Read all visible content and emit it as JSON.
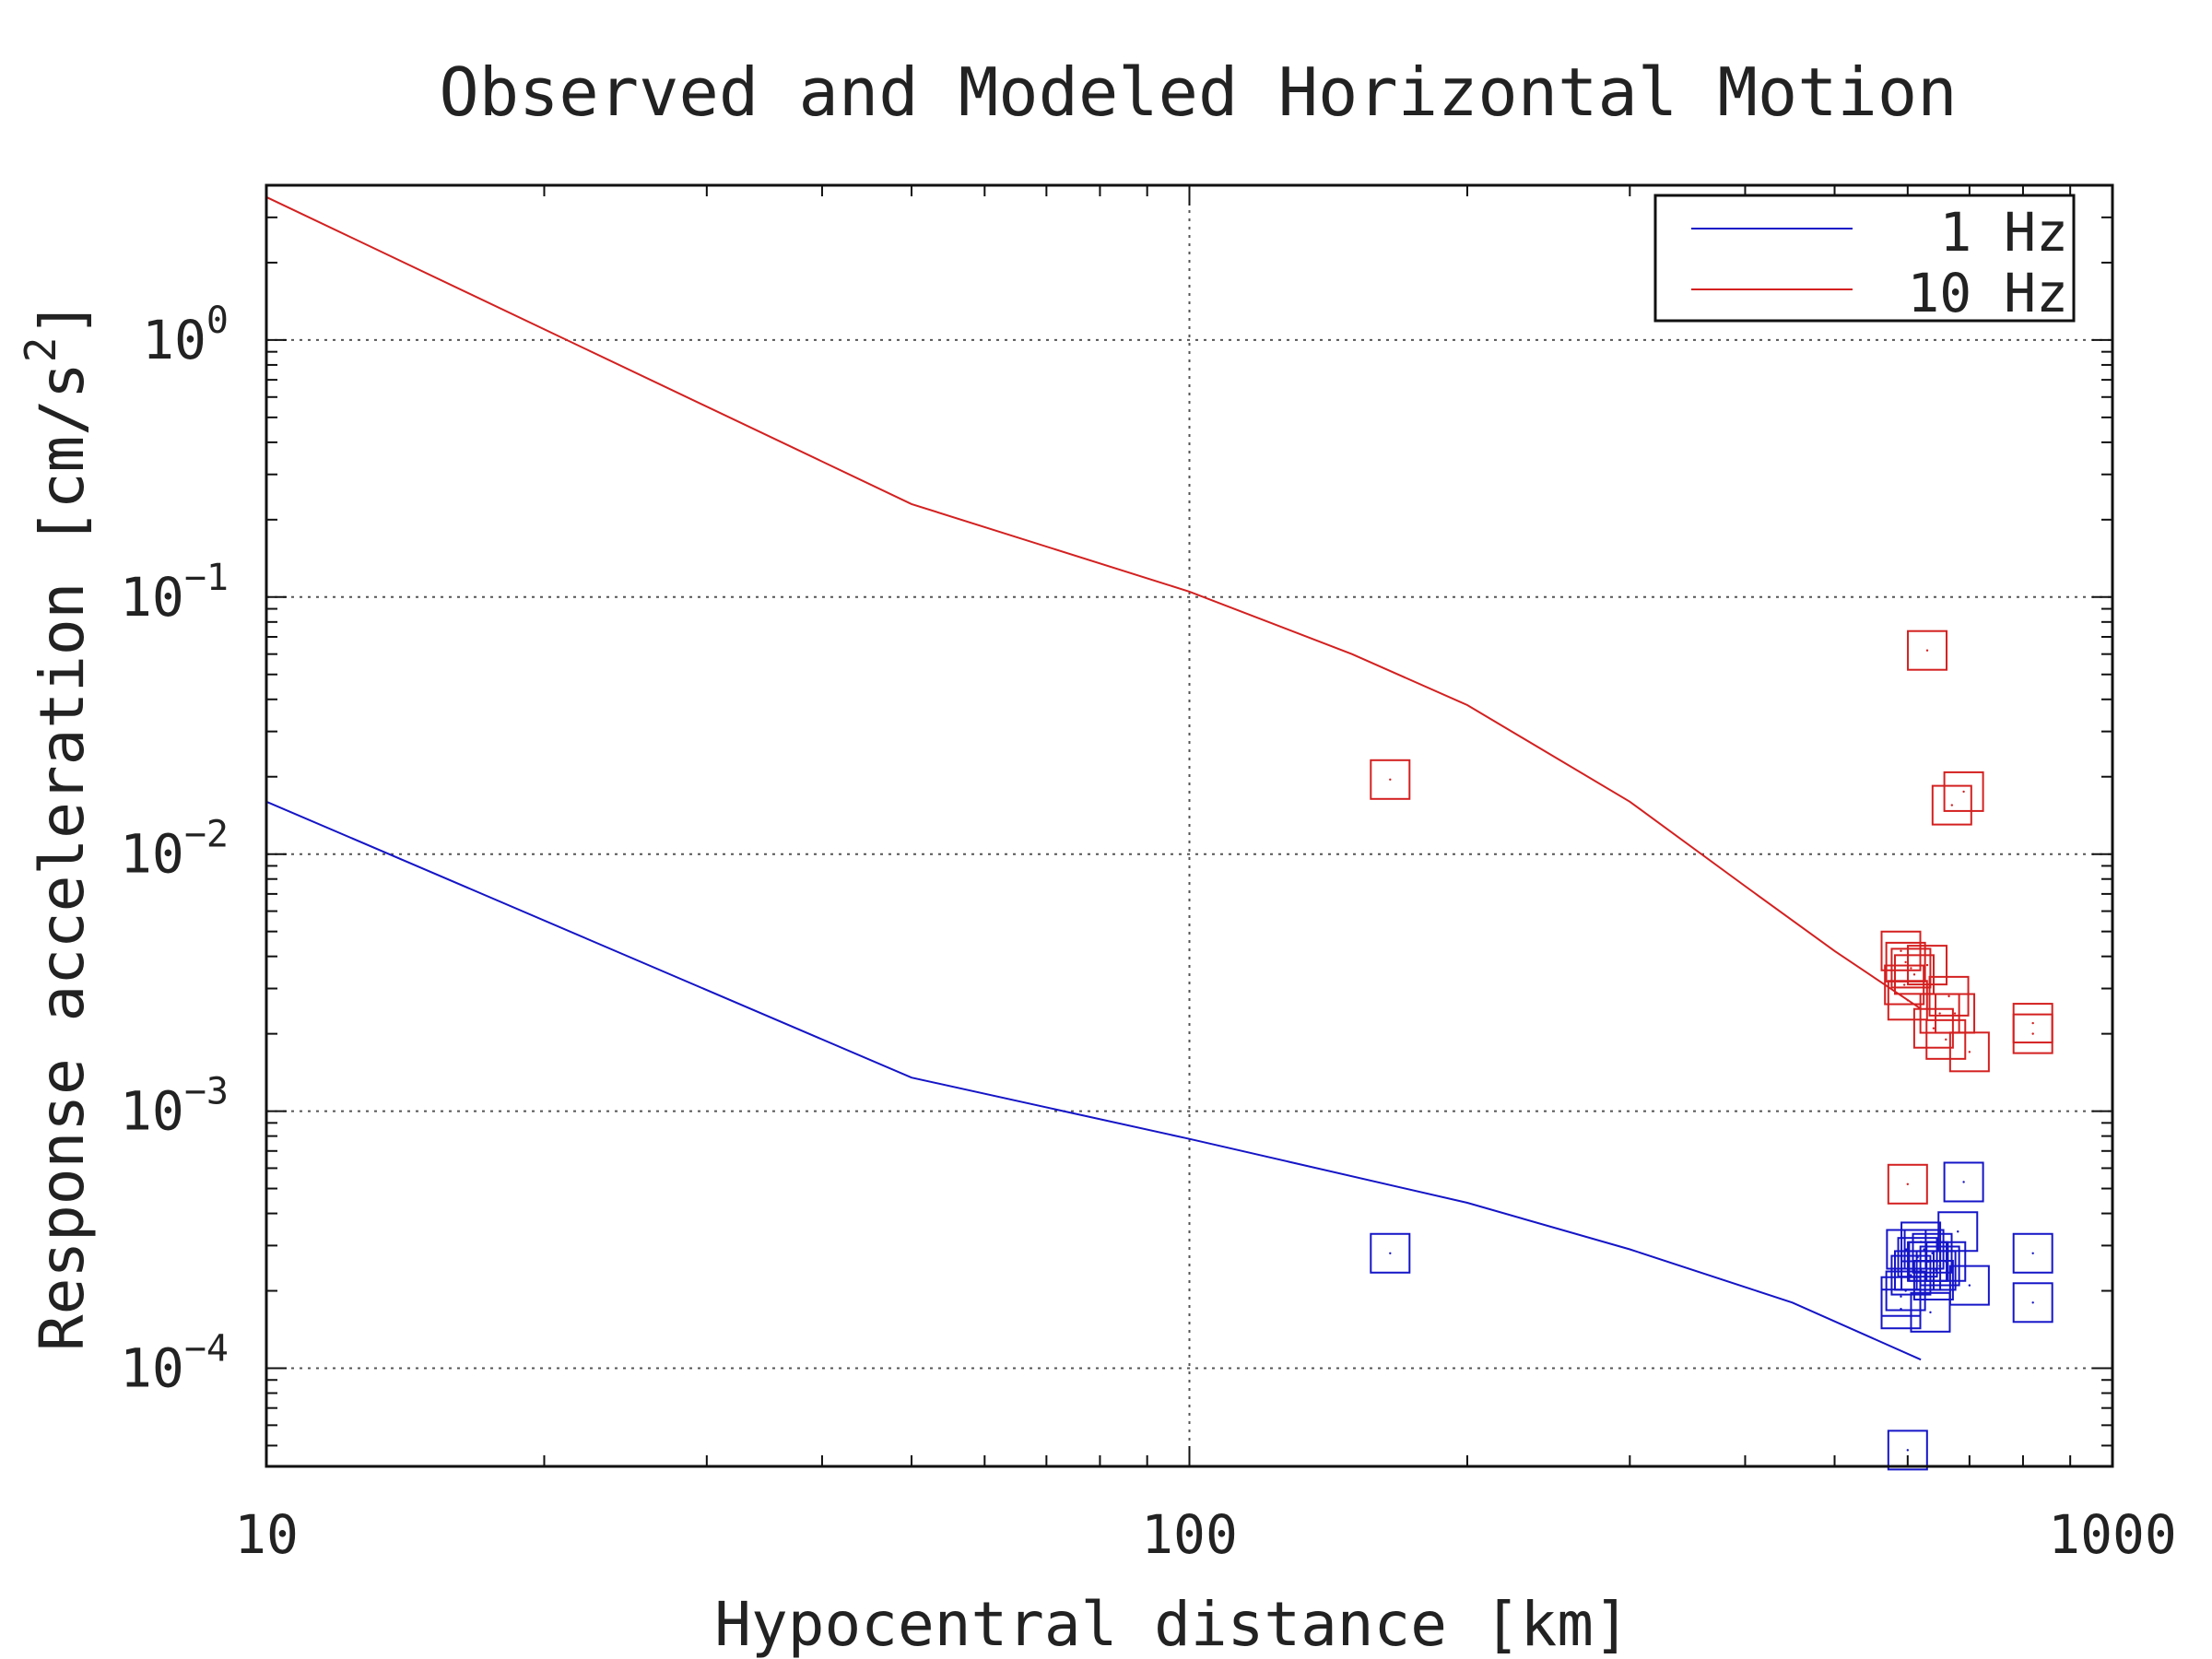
{
  "chart_data": {
    "type": "scatter",
    "title": "Observed and Modeled Horizontal Motion",
    "xlabel": "Hypocentral distance [km]",
    "ylabel": "Response acceleration [cm/s^2]",
    "ylabel_main": "Response acceleration [cm/s",
    "ylabel_sup": "2",
    "ylabel_close": "]",
    "x_scale": "log",
    "y_scale": "log",
    "xlim": [
      10,
      1000
    ],
    "ylim": [
      4.15e-05,
      4.0
    ],
    "x_ticks": [
      {
        "value": 10,
        "label": "10"
      },
      {
        "value": 100,
        "label": "100"
      },
      {
        "value": 1000,
        "label": "1000"
      }
    ],
    "y_ticks": [
      {
        "value": 1,
        "base": "10",
        "exp": "0"
      },
      {
        "value": 0.1,
        "base": "10",
        "exp": "−1"
      },
      {
        "value": 0.01,
        "base": "10",
        "exp": "−2"
      },
      {
        "value": 0.001,
        "base": "10",
        "exp": "−3"
      },
      {
        "value": 0.0001,
        "base": "10",
        "exp": "−4"
      }
    ],
    "grid": true,
    "legend_position": "top-right",
    "series": [
      {
        "name": "1 Hz",
        "color": "#1515c8",
        "model": {
          "x": [
            10,
            50,
            100,
            200,
            300,
            450,
            620
          ],
          "y": [
            0.016,
            0.00135,
            0.00078,
            0.00044,
            0.00029,
            0.00018,
            0.000108
          ]
        },
        "observed": {
          "x": [
            165,
            597,
            590,
            598,
            630,
            610,
            615,
            620,
            625,
            650,
            660,
            590,
            605,
            640,
            700,
            620,
            632,
            638,
            644,
            680,
            820,
            820,
            690,
            635,
            600
          ],
          "y": [
            0.00028,
            0.0002,
            0.00017,
            0.00029,
            0.00026,
            0.00024,
            0.00027,
            0.00031,
            0.00029,
            0.00025,
            0.00026,
            0.00019,
            0.00023,
            0.00022,
            0.00021,
            0.00024,
            0.00026,
            0.00028,
            0.00024,
            0.00034,
            0.00028,
            0.00018,
            0.00053,
            0.000165,
            4.8e-05
          ]
        }
      },
      {
        "name": "10 Hz",
        "color": "#d42020",
        "model": {
          "x": [
            10,
            50,
            100,
            150,
            200,
            300,
            400,
            500,
            620
          ],
          "y": [
            3.6,
            0.23,
            0.105,
            0.06,
            0.038,
            0.016,
            0.0075,
            0.0042,
            0.0025
          ]
        },
        "observed": {
          "x": [
            165,
            630,
            690,
            670,
            590,
            597,
            605,
            595,
            600,
            610,
            630,
            665,
            675,
            650,
            640,
            660,
            700,
            820,
            820,
            600
          ],
          "y": [
            0.0195,
            0.062,
            0.0175,
            0.0155,
            0.0042,
            0.0038,
            0.0036,
            0.0031,
            0.0027,
            0.0034,
            0.0037,
            0.0028,
            0.0024,
            0.0024,
            0.0021,
            0.0019,
            0.0017,
            0.0022,
            0.002,
            0.00052
          ]
        }
      }
    ]
  }
}
